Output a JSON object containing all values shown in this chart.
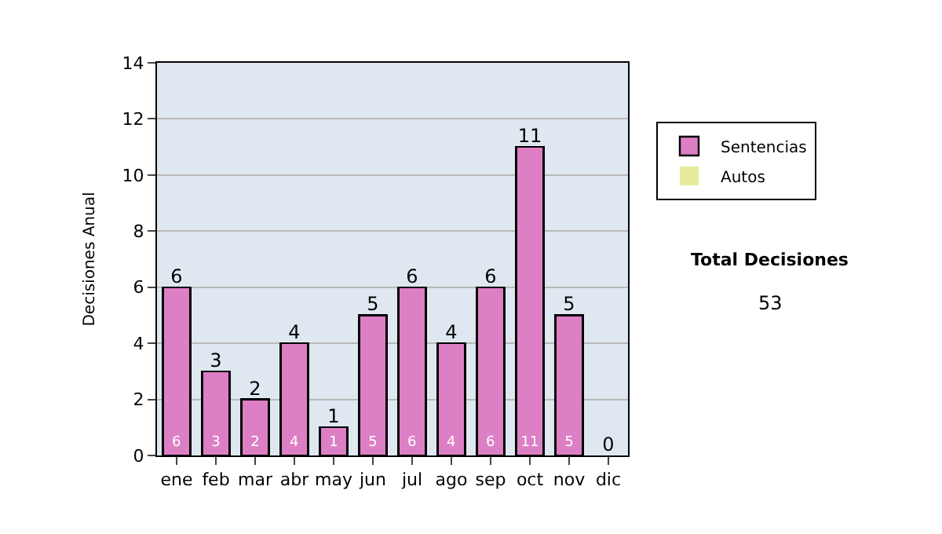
{
  "chart_data": {
    "type": "bar",
    "stacked": true,
    "ylabel": "Decisiones Anual",
    "categories": [
      "ene",
      "feb",
      "mar",
      "abr",
      "may",
      "jun",
      "jul",
      "ago",
      "sep",
      "oct",
      "nov",
      "dic"
    ],
    "series": [
      {
        "name": "Sentencias",
        "color": "#dd7fc4",
        "values": [
          6,
          3,
          2,
          4,
          1,
          5,
          6,
          4,
          6,
          11,
          5,
          0
        ],
        "value_labels": [
          "6",
          "3",
          "2",
          "4",
          "1",
          "5",
          "6",
          "4",
          "6",
          "11",
          "5",
          null
        ]
      },
      {
        "name": "Autos",
        "color": "#e6eb9c",
        "values": [
          0,
          0,
          0,
          0,
          0,
          0,
          0,
          0,
          0,
          0,
          0,
          0
        ]
      }
    ],
    "totals": [
      "6",
      "3",
      "2",
      "4",
      "1",
      "5",
      "6",
      "4",
      "6",
      "11",
      "5",
      "0"
    ],
    "ylim": [
      0,
      14
    ],
    "yticks": [
      0,
      2,
      4,
      6,
      8,
      10,
      12,
      14
    ],
    "grid": "y",
    "legend": "right",
    "annotations": [
      "Total Decisiones",
      "53"
    ]
  }
}
